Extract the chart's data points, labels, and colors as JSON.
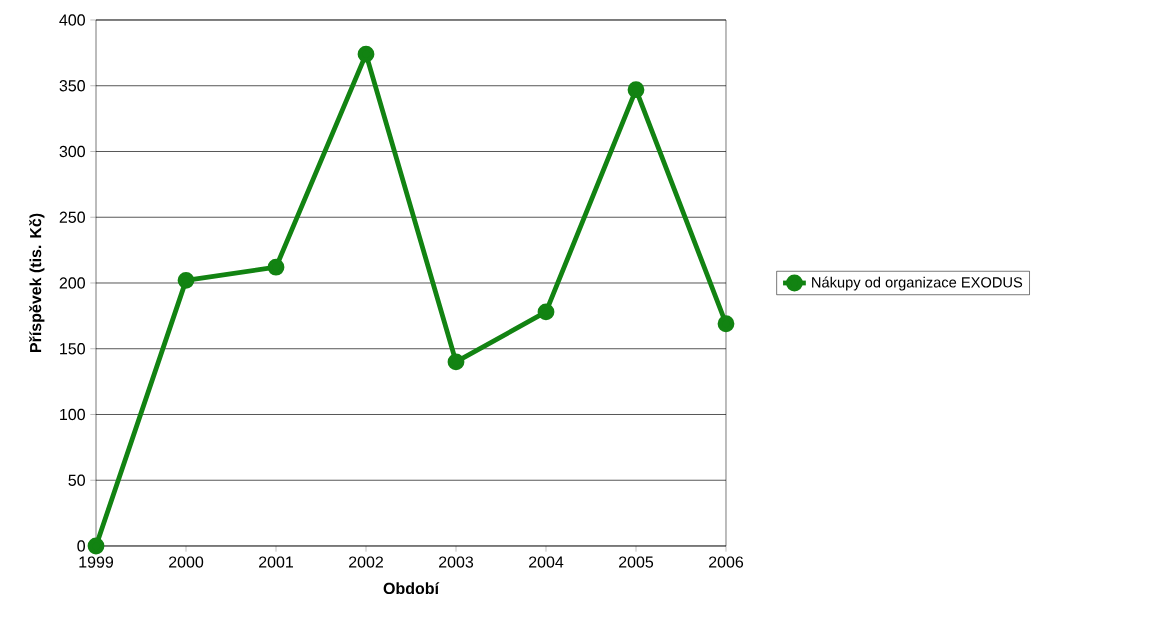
{
  "chart_data": {
    "type": "line",
    "xlabel": "Období",
    "ylabel": "Příspěvek (tis. Kč)",
    "x": [
      1999,
      2000,
      2001,
      2002,
      2003,
      2004,
      2005,
      2006
    ],
    "series": [
      {
        "name": "Nákupy od organizace EXODUS",
        "color": "#128312",
        "values": [
          0,
          202,
          212,
          374,
          140,
          178,
          347,
          169
        ]
      }
    ],
    "xlim": [
      1999,
      2006
    ],
    "xticks": [
      1999,
      2000,
      2001,
      2002,
      2003,
      2004,
      2005,
      2006
    ],
    "ylim": [
      0,
      400
    ],
    "yticks": [
      0,
      50,
      100,
      150,
      200,
      250,
      300,
      350,
      400
    ],
    "grid": "y",
    "legend": "right",
    "marker": "circle",
    "line_style": "solid"
  }
}
